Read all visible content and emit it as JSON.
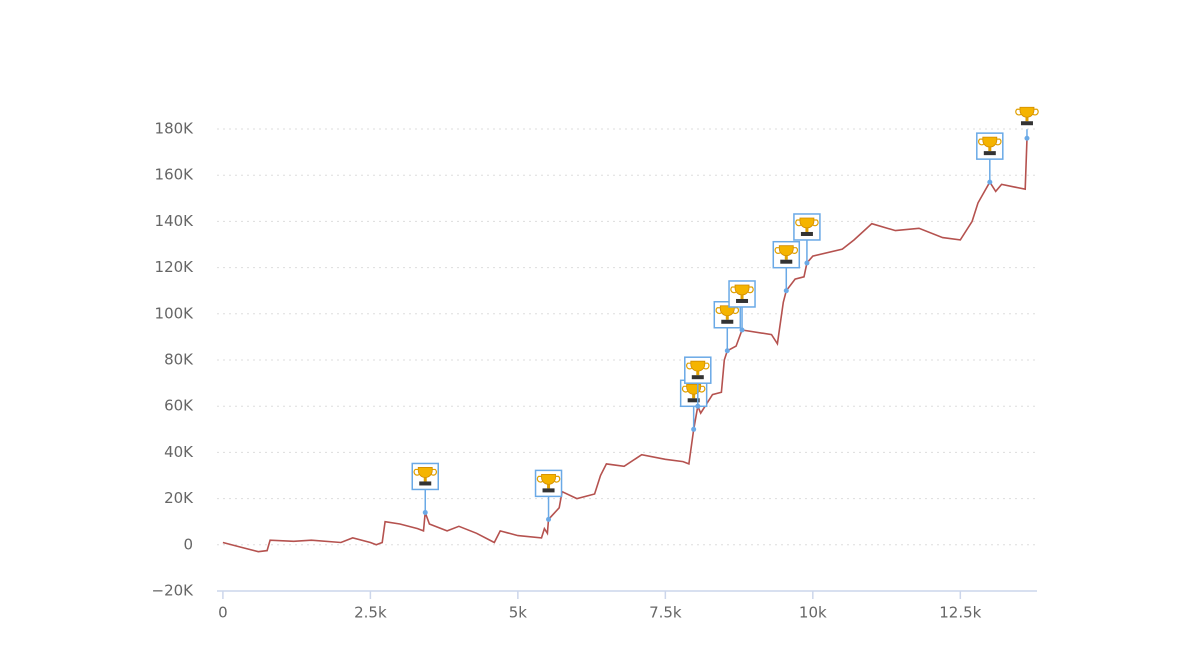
{
  "chart_data": {
    "type": "line",
    "x": [
      0,
      300,
      600,
      750,
      800,
      1200,
      1500,
      2000,
      2200,
      2500,
      2600,
      2700,
      2750,
      3000,
      3300,
      3400,
      3430,
      3500,
      3800,
      4000,
      4300,
      4600,
      4700,
      5000,
      5400,
      5450,
      5500,
      5520,
      5700,
      5750,
      6000,
      6300,
      6400,
      6500,
      6800,
      7100,
      7500,
      7800,
      7900,
      7980,
      8050,
      8100,
      8300,
      8450,
      8500,
      8550,
      8700,
      8800,
      9300,
      9400,
      9500,
      9550,
      9700,
      9850,
      9900,
      10000,
      10500,
      10700,
      11000,
      11400,
      11800,
      12200,
      12500,
      12700,
      12800,
      13000,
      13100,
      13200,
      13400,
      13600,
      13630
    ],
    "values": [
      1000,
      -1000,
      -3000,
      -2500,
      2000,
      1500,
      2000,
      1000,
      3000,
      1000,
      0,
      1000,
      10000,
      9000,
      7000,
      6000,
      14000,
      9000,
      6000,
      8000,
      5000,
      1000,
      6000,
      4000,
      3000,
      7000,
      5000,
      11000,
      16000,
      23000,
      20000,
      22000,
      30000,
      35000,
      34000,
      39000,
      37000,
      36000,
      35000,
      50000,
      60000,
      57000,
      65000,
      66000,
      80000,
      84000,
      86000,
      93000,
      91000,
      87000,
      105000,
      110000,
      115000,
      116000,
      122000,
      125000,
      128000,
      132000,
      139000,
      136000,
      137000,
      133000,
      132000,
      140000,
      148000,
      157000,
      153000,
      156000,
      155000,
      154000,
      176000
    ],
    "color": "#b5524f",
    "markers": {
      "x": [
        3430,
        5520,
        7980,
        8050,
        8550,
        8800,
        9550,
        9900,
        13000,
        13630
      ],
      "values": [
        14000,
        11000,
        50000,
        60000,
        84000,
        93000,
        110000,
        122000,
        157000,
        176000
      ]
    },
    "xlim": [
      -100,
      13800
    ],
    "xticks": [
      0,
      {
        "value": 2500,
        "label": "2.5k"
      },
      {
        "value": 5000,
        "label": "5k"
      },
      {
        "value": 7500,
        "label": "7.5k"
      },
      {
        "value": 10000,
        "label": "10k"
      },
      {
        "value": 12500,
        "label": "12.5k"
      }
    ],
    "ylim": [
      -20000,
      180000
    ],
    "yticks": [
      {
        "value": -20000,
        "label": "−20K"
      },
      0,
      {
        "value": 20000,
        "label": "20K"
      },
      {
        "value": 40000,
        "label": "40K"
      },
      {
        "value": 60000,
        "label": "60K"
      },
      {
        "value": 80000,
        "label": "80K"
      },
      {
        "value": 100000,
        "label": "100K"
      },
      {
        "value": 120000,
        "label": "120K"
      },
      {
        "value": 140000,
        "label": "140K"
      },
      {
        "value": 160000,
        "label": "160K"
      },
      {
        "value": 180000,
        "label": "180K"
      }
    ],
    "grid": true
  }
}
